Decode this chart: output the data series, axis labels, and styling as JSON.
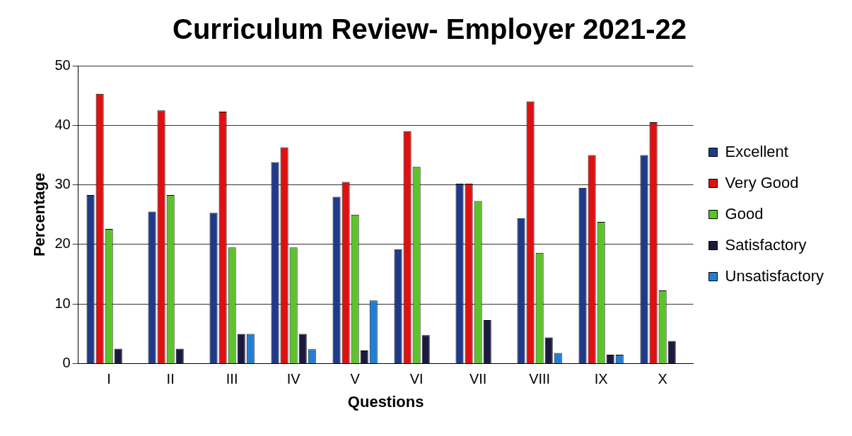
{
  "chart_data": {
    "type": "bar",
    "title": "Curriculum Review- Employer 2021-22",
    "xlabel": "Questions",
    "ylabel": "Percentage",
    "categories": [
      "I",
      "II",
      "III",
      "IV",
      "V",
      "VI",
      "VII",
      "VIII",
      "IX",
      "X"
    ],
    "series": [
      {
        "name": "Excellent",
        "color": "#1f3a8a",
        "values": [
          28.3,
          25.5,
          25.3,
          33.8,
          28,
          19.2,
          30.2,
          24.4,
          29.5,
          35
        ]
      },
      {
        "name": "Very Good",
        "color": "#e01010",
        "values": [
          45.3,
          42.5,
          42.3,
          36.3,
          30.5,
          39,
          30.2,
          44,
          35,
          40.5
        ]
      },
      {
        "name": "Good",
        "color": "#5cc42a",
        "values": [
          22.6,
          28.3,
          19.5,
          19.5,
          25,
          33,
          27.3,
          18.6,
          23.8,
          12.3
        ]
      },
      {
        "name": "Satisfactory",
        "color": "#1a1a40",
        "values": [
          2.5,
          2.5,
          5,
          5,
          2.2,
          4.8,
          7.3,
          4.4,
          1.5,
          3.8
        ]
      },
      {
        "name": "Unsatisfactory",
        "color": "#1f7fd6",
        "values": [
          0,
          0,
          5,
          2.4,
          10.6,
          0,
          0,
          1.8,
          1.5,
          0
        ]
      }
    ],
    "ylim": [
      0,
      50
    ],
    "yticks": [
      0,
      10,
      20,
      30,
      40,
      50
    ],
    "grid": "y",
    "legend": "right"
  }
}
